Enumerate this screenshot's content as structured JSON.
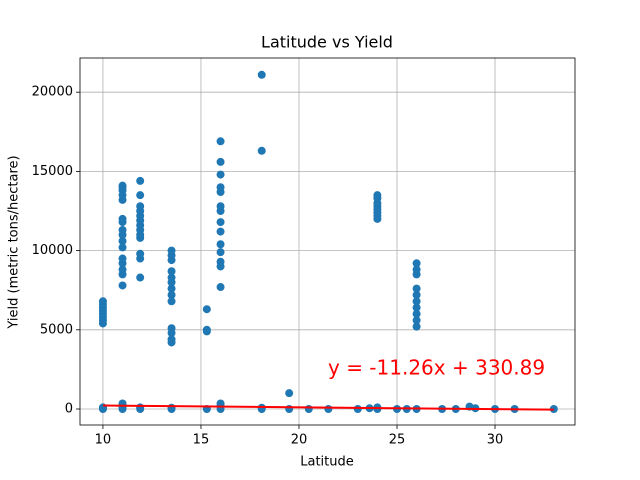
{
  "chart_data": {
    "type": "scatter",
    "title": "Latitude vs Yield",
    "x_label": "Latitude",
    "y_label": "Yield (metric tons/hectare)",
    "annotation": "y = -11.26x + 330.89",
    "xlim": [
      8.83,
      34.08
    ],
    "ylim": [
      -1010,
      22159
    ],
    "xticks": [
      10,
      15,
      20,
      25,
      30
    ],
    "yticks": [
      0,
      5000,
      10000,
      15000,
      20000
    ],
    "grid": true,
    "series": [
      {
        "color": "#1f77b4",
        "x": [
          10,
          10,
          10,
          10,
          10,
          10,
          10,
          10,
          10,
          10,
          10,
          11,
          11,
          11,
          11,
          11,
          11,
          11,
          11,
          11,
          11,
          11,
          11,
          11,
          11,
          11,
          11,
          11,
          11,
          11,
          11,
          11.9,
          11.9,
          11.9,
          11.9,
          11.9,
          11.9,
          11.9,
          11.9,
          11.9,
          11.9,
          11.9,
          11.9,
          11.9,
          11.9,
          11.9,
          13.5,
          13.5,
          13.5,
          13.5,
          13.5,
          13.5,
          13.5,
          13.5,
          13.5,
          13.5,
          13.5,
          13.5,
          13.5,
          13.5,
          13.5,
          15.3,
          15.3,
          15.3,
          15.3,
          16,
          16,
          16,
          16,
          16,
          16,
          16,
          16,
          16,
          16,
          16,
          16,
          16,
          16,
          16,
          16,
          16,
          18.1,
          18.1,
          18.1,
          18.1,
          19.5,
          19.5,
          24,
          24,
          24,
          24,
          24,
          24,
          24,
          24,
          24,
          24,
          26,
          26,
          26,
          26,
          26,
          26,
          26,
          26,
          26,
          26,
          26,
          20.5,
          21.5,
          23,
          23.6,
          25,
          25.5,
          27.3,
          28,
          28.7,
          29,
          30,
          31,
          33
        ],
        "values": [
          5400,
          5600,
          5800,
          6000,
          6200,
          6400,
          6600,
          6800,
          0,
          50,
          100,
          7800,
          8500,
          8800,
          9200,
          9500,
          10200,
          10600,
          11000,
          11300,
          11800,
          12000,
          13200,
          13500,
          13800,
          14000,
          14100,
          0,
          100,
          200,
          350,
          8300,
          9500,
          9800,
          10800,
          11000,
          11300,
          11600,
          11900,
          12200,
          12500,
          12800,
          13500,
          14400,
          0,
          100,
          4200,
          4400,
          4800,
          5100,
          6800,
          7200,
          7600,
          8000,
          8300,
          8700,
          9400,
          9700,
          10000,
          0,
          80,
          4900,
          5000,
          6300,
          0,
          7700,
          9000,
          9300,
          9900,
          10400,
          11200,
          11800,
          12500,
          12800,
          13700,
          14000,
          14800,
          15600,
          16900,
          0,
          200,
          350,
          21100,
          16300,
          0,
          80,
          1000,
          0,
          12000,
          12200,
          12400,
          12600,
          12800,
          13000,
          13300,
          13500,
          0,
          100,
          5200,
          5600,
          6000,
          6400,
          6800,
          7200,
          7600,
          8500,
          8800,
          9200,
          0,
          0,
          0,
          0,
          50,
          0,
          0,
          0,
          0,
          150,
          50,
          0,
          0,
          0
        ]
      }
    ],
    "fit_line": {
      "color": "red",
      "x": [
        10,
        33
      ],
      "values": [
        218.29,
        -40.69
      ]
    }
  }
}
